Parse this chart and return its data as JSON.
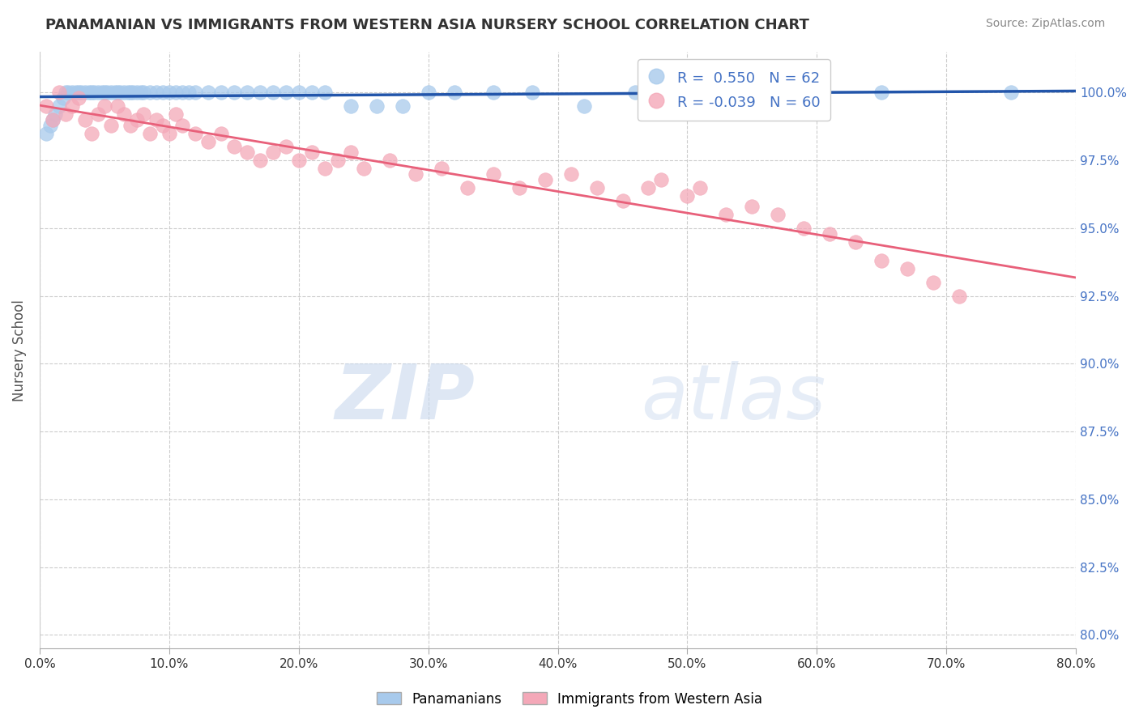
{
  "title": "PANAMANIAN VS IMMIGRANTS FROM WESTERN ASIA NURSERY SCHOOL CORRELATION CHART",
  "source": "Source: ZipAtlas.com",
  "ylabel": "Nursery School",
  "xlim": [
    0.0,
    80.0
  ],
  "ylim": [
    79.5,
    101.5
  ],
  "yticks": [
    80.0,
    82.5,
    85.0,
    87.5,
    90.0,
    92.5,
    95.0,
    97.5,
    100.0
  ],
  "xticks": [
    0.0,
    10.0,
    20.0,
    30.0,
    40.0,
    50.0,
    60.0,
    70.0,
    80.0
  ],
  "blue_color": "#A8CAEC",
  "pink_color": "#F4A8B8",
  "blue_line_color": "#2255AA",
  "pink_line_color": "#E8607A",
  "legend_label_blue": "Panamanians",
  "legend_label_pink": "Immigrants from Western Asia",
  "R_blue": 0.55,
  "N_blue": 62,
  "R_pink": -0.039,
  "N_pink": 60,
  "blue_scatter_x": [
    0.5,
    0.8,
    1.0,
    1.2,
    1.5,
    1.8,
    2.0,
    2.2,
    2.5,
    2.8,
    3.0,
    3.2,
    3.5,
    3.8,
    4.0,
    4.2,
    4.5,
    4.8,
    5.0,
    5.2,
    5.5,
    5.8,
    6.0,
    6.2,
    6.5,
    6.8,
    7.0,
    7.2,
    7.5,
    7.8,
    8.0,
    8.5,
    9.0,
    9.5,
    10.0,
    10.5,
    11.0,
    11.5,
    12.0,
    13.0,
    14.0,
    15.0,
    16.0,
    17.0,
    18.0,
    19.0,
    20.0,
    21.0,
    22.0,
    24.0,
    26.0,
    28.0,
    30.0,
    32.0,
    35.0,
    38.0,
    42.0,
    46.0,
    50.0,
    55.0,
    65.0,
    75.0
  ],
  "blue_scatter_y": [
    98.5,
    98.8,
    99.0,
    99.2,
    99.5,
    99.8,
    100.0,
    100.0,
    100.0,
    100.0,
    100.0,
    100.0,
    100.0,
    100.0,
    100.0,
    100.0,
    100.0,
    100.0,
    100.0,
    100.0,
    100.0,
    100.0,
    100.0,
    100.0,
    100.0,
    100.0,
    100.0,
    100.0,
    100.0,
    100.0,
    100.0,
    100.0,
    100.0,
    100.0,
    100.0,
    100.0,
    100.0,
    100.0,
    100.0,
    100.0,
    100.0,
    100.0,
    100.0,
    100.0,
    100.0,
    100.0,
    100.0,
    100.0,
    100.0,
    99.5,
    99.5,
    99.5,
    100.0,
    100.0,
    100.0,
    100.0,
    99.5,
    100.0,
    100.0,
    100.0,
    100.0,
    100.0
  ],
  "pink_scatter_x": [
    0.5,
    1.0,
    1.5,
    2.0,
    2.5,
    3.0,
    3.5,
    4.0,
    4.5,
    5.0,
    5.5,
    6.0,
    6.5,
    7.0,
    7.5,
    8.0,
    8.5,
    9.0,
    9.5,
    10.0,
    10.5,
    11.0,
    12.0,
    13.0,
    14.0,
    15.0,
    16.0,
    17.0,
    18.0,
    19.0,
    20.0,
    21.0,
    22.0,
    23.0,
    24.0,
    25.0,
    27.0,
    29.0,
    31.0,
    33.0,
    35.0,
    37.0,
    39.0,
    41.0,
    43.0,
    45.0,
    47.0,
    48.0,
    50.0,
    51.0,
    53.0,
    55.0,
    57.0,
    59.0,
    61.0,
    63.0,
    65.0,
    67.0,
    69.0,
    71.0
  ],
  "pink_scatter_y": [
    99.5,
    99.0,
    100.0,
    99.2,
    99.5,
    99.8,
    99.0,
    98.5,
    99.2,
    99.5,
    98.8,
    99.5,
    99.2,
    98.8,
    99.0,
    99.2,
    98.5,
    99.0,
    98.8,
    98.5,
    99.2,
    98.8,
    98.5,
    98.2,
    98.5,
    98.0,
    97.8,
    97.5,
    97.8,
    98.0,
    97.5,
    97.8,
    97.2,
    97.5,
    97.8,
    97.2,
    97.5,
    97.0,
    97.2,
    96.5,
    97.0,
    96.5,
    96.8,
    97.0,
    96.5,
    96.0,
    96.5,
    96.8,
    96.2,
    96.5,
    95.5,
    95.8,
    95.5,
    95.0,
    94.8,
    94.5,
    93.8,
    93.5,
    93.0,
    92.5
  ],
  "watermark_zip_color": "#C8D8EE",
  "watermark_atlas_color": "#C8D8EE",
  "background_color": "#FFFFFF",
  "grid_color": "#CCCCCC",
  "title_color": "#333333",
  "axis_label_color": "#555555",
  "tick_label_color": "#4472C4",
  "tick_label_color_x": "#333333"
}
